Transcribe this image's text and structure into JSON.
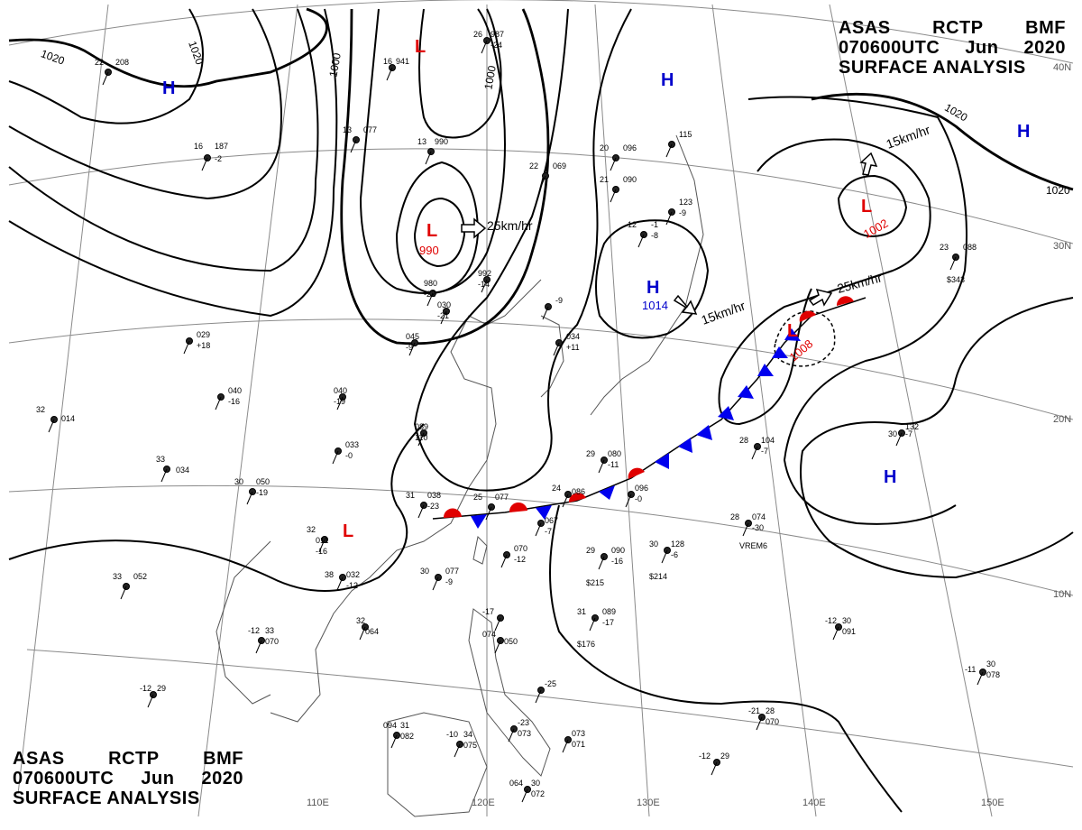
{
  "header": {
    "line1": [
      "ASAS",
      "RCTP",
      "BMF"
    ],
    "line2": [
      "070600UTC",
      "Jun",
      "2020"
    ],
    "line3": "SURFACE ANALYSIS"
  },
  "colors": {
    "low": "#e00000",
    "high": "#0000cc",
    "warm_front": "#e00000",
    "cold_front": "#0000ee",
    "isobar": "#000000",
    "grid": "#888888",
    "coast": "#555555"
  },
  "lon_labels": [
    "110E",
    "120E",
    "130E",
    "140E",
    "150E"
  ],
  "lat_labels": [
    "40N",
    "30N",
    "20N",
    "10N"
  ],
  "isobar_labels": [
    "1020",
    "1020",
    "1000",
    "1000",
    "1020",
    "1020"
  ],
  "pressure_centers": [
    {
      "type": "L",
      "value": ""
    },
    {
      "type": "L",
      "value": "990"
    },
    {
      "type": "L",
      "value": "1002"
    },
    {
      "type": "L",
      "value": "1008"
    },
    {
      "type": "L",
      "value": ""
    },
    {
      "type": "H",
      "value": ""
    },
    {
      "type": "H",
      "value": ""
    },
    {
      "type": "H",
      "value": "1014"
    },
    {
      "type": "H",
      "value": ""
    },
    {
      "type": "H",
      "value": ""
    }
  ],
  "motion_labels": [
    "25km/hr",
    "15km/hr",
    "25km/hr",
    "15km/hr"
  ],
  "station_values": [
    "22",
    "208",
    "16",
    "941",
    "26",
    "987",
    "-24",
    "16",
    "187",
    "-2",
    "13",
    "077",
    "13",
    "990",
    "22",
    "069",
    "20",
    "096",
    "21",
    "090",
    "12",
    "-1",
    "-8",
    "123",
    "-9",
    "115",
    "23",
    "088",
    "$343",
    "980",
    "-22",
    "992",
    "-14",
    "030",
    "-21",
    "040",
    "-19",
    "045",
    "-9",
    "089",
    "110",
    "-9",
    "034",
    "+11",
    "029",
    "+18",
    "040",
    "-16",
    "033",
    "-0",
    "32",
    "014",
    "33",
    "034",
    "31",
    "038",
    "-23",
    "25",
    "077",
    "24",
    "086",
    "067",
    "-7",
    "29",
    "080",
    "-11",
    "096",
    "-0",
    "28",
    "104",
    "-7",
    "132",
    "30",
    "-7",
    "28",
    "074",
    "-30",
    "VREM6",
    "32",
    "011",
    "-16",
    "30",
    "050",
    "-19",
    "38",
    "032",
    "-12",
    "33",
    "052",
    "30",
    "077",
    "-9",
    "070",
    "-12",
    "29",
    "090",
    "-16",
    "$215",
    "30",
    "128",
    "-6",
    "$214",
    "31",
    "089",
    "-17",
    "$176",
    "32",
    "064",
    "-12",
    "33",
    "070",
    "-17",
    "074",
    "050",
    "-12",
    "30",
    "091",
    "-11",
    "30",
    "078",
    "-12",
    "29",
    "094",
    "31",
    "082",
    "-10",
    "34",
    "075",
    "-23",
    "073",
    "-25",
    "073",
    "071",
    "-21",
    "28",
    "070",
    "-12",
    "29",
    "064",
    "30",
    "072",
    "-24"
  ]
}
